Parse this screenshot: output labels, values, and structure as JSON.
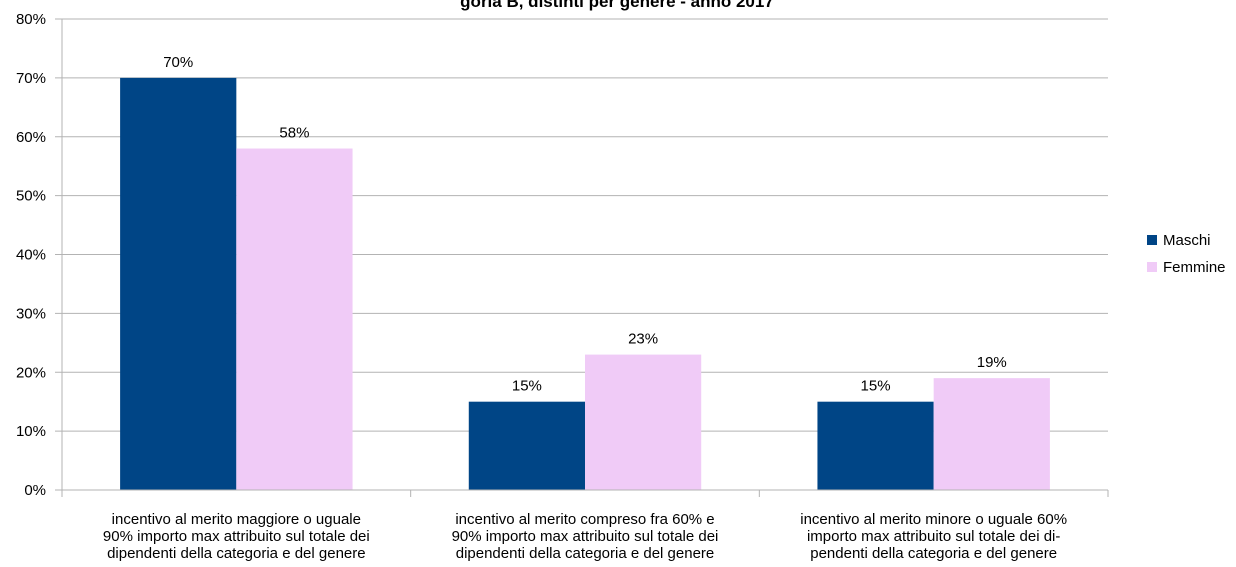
{
  "chart_data": {
    "type": "bar",
    "title": "goria B, distinti per genere - anno 2017",
    "categories": [
      [
        "incentivo al merito maggiore o uguale",
        "90% importo max attribuito sul totale dei",
        "dipendenti della categoria e del genere"
      ],
      [
        "incentivo al merito compreso fra 60% e",
        "90% importo max attribuito sul totale dei",
        "dipendenti della categoria e del genere"
      ],
      [
        "incentivo al merito minore o uguale 60%",
        "importo max attribuito sul totale dei di-",
        "pendenti della categoria e del genere"
      ]
    ],
    "series": [
      {
        "name": "Maschi",
        "values": [
          70,
          15,
          15
        ],
        "labels": [
          "70%",
          "15%",
          "15%"
        ],
        "color": "#004586"
      },
      {
        "name": "Femmine",
        "values": [
          58,
          23,
          19
        ],
        "labels": [
          "58%",
          "23%",
          "19%"
        ],
        "color": "#f0cbf7"
      }
    ],
    "ylim": [
      0,
      80
    ],
    "yticks": [
      "0%",
      "10%",
      "20%",
      "30%",
      "40%",
      "50%",
      "60%",
      "70%",
      "80%"
    ],
    "grid": true,
    "legend": "right",
    "colors": {
      "grid": "#b3b3b3",
      "axis": "#b3b3b3"
    }
  }
}
